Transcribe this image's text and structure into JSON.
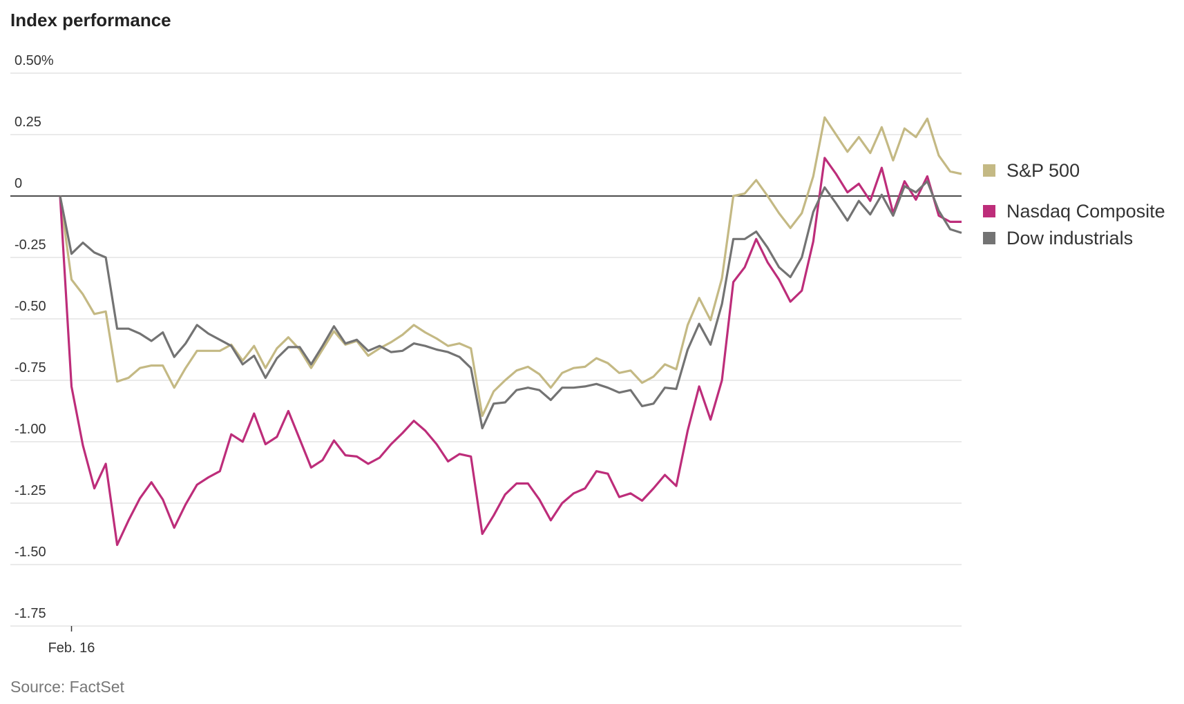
{
  "chart_data": {
    "type": "line",
    "title": "Index performance",
    "source": "Source: FactSet",
    "categories": [
      null,
      "Feb. 16",
      null,
      null,
      null,
      null,
      null,
      null,
      null,
      null,
      null,
      null,
      null,
      null,
      null,
      null,
      null,
      null,
      null,
      null,
      null,
      null,
      null,
      null,
      null,
      null,
      null,
      null,
      null,
      null,
      null,
      null,
      null,
      null,
      null,
      null,
      null,
      null,
      null,
      null,
      null,
      null,
      null,
      null,
      null,
      null,
      null,
      null,
      null,
      null,
      null,
      null,
      null,
      null,
      null,
      null,
      null,
      null,
      null,
      null,
      null,
      null,
      null,
      null,
      null,
      null,
      null,
      null,
      null,
      null,
      null,
      null,
      null,
      null,
      null,
      null,
      null,
      null,
      null,
      null
    ],
    "ylim": [
      -1.75,
      0.5
    ],
    "yticks": [
      {
        "value": 0.5,
        "label": "0.50%"
      },
      0.25,
      0,
      -0.25,
      {
        "value": -0.5,
        "label": "-0.50"
      },
      -0.75,
      {
        "value": -1,
        "label": "-1.00"
      },
      -1.25,
      {
        "value": -1.5,
        "label": "-1.50"
      },
      -1.75
    ],
    "grid": true,
    "legend": "right",
    "series": [
      {
        "name": "S&P 500",
        "color": "#c4b984",
        "values": [
          0,
          -0.34,
          -0.4,
          -0.48,
          -0.47,
          -0.755,
          -0.74,
          -0.7,
          -0.69,
          -0.69,
          -0.78,
          -0.7,
          -0.63,
          -0.63,
          -0.63,
          -0.605,
          -0.67,
          -0.61,
          -0.7,
          -0.62,
          -0.575,
          -0.625,
          -0.7,
          -0.625,
          -0.55,
          -0.605,
          -0.59,
          -0.65,
          -0.62,
          -0.595,
          -0.565,
          -0.525,
          -0.555,
          -0.58,
          -0.61,
          -0.6,
          -0.62,
          -0.895,
          -0.795,
          -0.75,
          -0.71,
          -0.695,
          -0.725,
          -0.78,
          -0.72,
          -0.7,
          -0.695,
          -0.66,
          -0.68,
          -0.72,
          -0.71,
          -0.76,
          -0.735,
          -0.685,
          -0.705,
          -0.525,
          -0.415,
          -0.505,
          -0.335,
          0,
          0.01,
          0.065,
          0,
          -0.07,
          -0.13,
          -0.07,
          0.08,
          0.32,
          0.25,
          0.18,
          0.24,
          0.175,
          0.28,
          0.145,
          0.275,
          0.24,
          0.315,
          0.165,
          0.1,
          0.09
        ]
      },
      {
        "name": "Nasdaq Composite",
        "color": "#bd2d7a",
        "values": [
          0,
          -0.775,
          -1.015,
          -1.19,
          -1.09,
          -1.42,
          -1.32,
          -1.23,
          -1.165,
          -1.235,
          -1.35,
          -1.255,
          -1.175,
          -1.145,
          -1.12,
          -0.97,
          -1,
          -0.885,
          -1.01,
          -0.98,
          -0.875,
          -0.99,
          -1.105,
          -1.075,
          -0.995,
          -1.055,
          -1.06,
          -1.09,
          -1.065,
          -1.01,
          -0.965,
          -0.915,
          -0.955,
          -1.01,
          -1.08,
          -1.05,
          -1.06,
          -1.375,
          -1.3,
          -1.215,
          -1.17,
          -1.17,
          -1.235,
          -1.32,
          -1.25,
          -1.21,
          -1.19,
          -1.12,
          -1.13,
          -1.225,
          -1.21,
          -1.24,
          -1.19,
          -1.135,
          -1.18,
          -0.955,
          -0.775,
          -0.91,
          -0.75,
          -0.35,
          -0.29,
          -0.175,
          -0.27,
          -0.34,
          -0.43,
          -0.385,
          -0.185,
          0.155,
          0.09,
          0.015,
          0.05,
          -0.02,
          0.115,
          -0.07,
          0.06,
          -0.015,
          0.08,
          -0.08,
          -0.105,
          -0.105
        ]
      },
      {
        "name": "Dow industrials",
        "color": "#737373",
        "values": [
          0,
          -0.235,
          -0.19,
          -0.23,
          -0.25,
          -0.54,
          -0.54,
          -0.56,
          -0.59,
          -0.555,
          -0.655,
          -0.6,
          -0.525,
          -0.56,
          -0.585,
          -0.61,
          -0.685,
          -0.65,
          -0.74,
          -0.66,
          -0.615,
          -0.615,
          -0.685,
          -0.61,
          -0.53,
          -0.6,
          -0.585,
          -0.63,
          -0.61,
          -0.635,
          -0.63,
          -0.6,
          -0.61,
          -0.625,
          -0.635,
          -0.655,
          -0.7,
          -0.945,
          -0.845,
          -0.84,
          -0.79,
          -0.78,
          -0.79,
          -0.83,
          -0.78,
          -0.78,
          -0.775,
          -0.765,
          -0.78,
          -0.8,
          -0.79,
          -0.855,
          -0.845,
          -0.78,
          -0.785,
          -0.625,
          -0.52,
          -0.605,
          -0.44,
          -0.175,
          -0.175,
          -0.145,
          -0.21,
          -0.29,
          -0.33,
          -0.25,
          -0.065,
          0.035,
          -0.03,
          -0.1,
          -0.02,
          -0.075,
          0.005,
          -0.08,
          0.04,
          0.015,
          0.06,
          -0.06,
          -0.135,
          -0.15
        ]
      }
    ]
  }
}
